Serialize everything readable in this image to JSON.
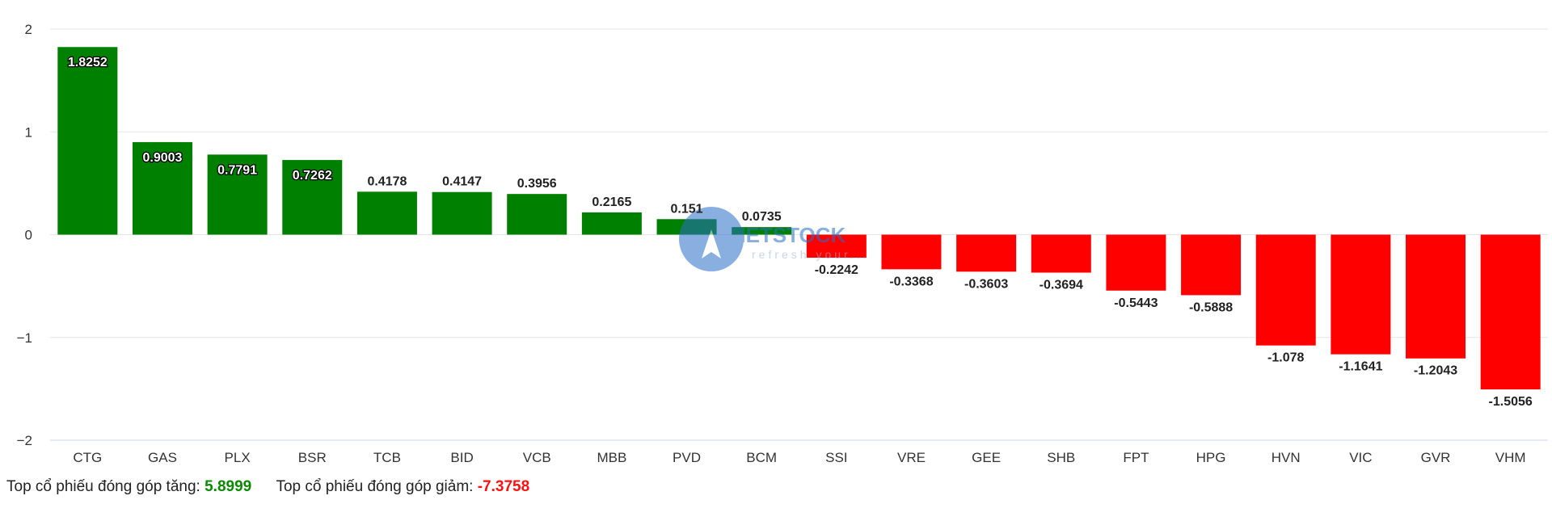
{
  "chart_data": {
    "type": "bar",
    "categories": [
      "CTG",
      "GAS",
      "PLX",
      "BSR",
      "TCB",
      "BID",
      "VCB",
      "MBB",
      "PVD",
      "BCM",
      "SSI",
      "VRE",
      "GEE",
      "SHB",
      "FPT",
      "HPG",
      "HVN",
      "VIC",
      "GVR",
      "VHM"
    ],
    "values": [
      1.8252,
      0.9003,
      0.7791,
      0.7262,
      0.4178,
      0.4147,
      0.3956,
      0.2165,
      0.151,
      0.0735,
      -0.2242,
      -0.3368,
      -0.3603,
      -0.3694,
      -0.5443,
      -0.5888,
      -1.078,
      -1.1641,
      -1.2043,
      -1.5056
    ],
    "value_labels": [
      "1.8252",
      "0.9003",
      "0.7791",
      "0.7262",
      "0.4178",
      "0.4147",
      "0.3956",
      "0.2165",
      "0.151",
      "0.0735",
      "-0.2242",
      "-0.3368",
      "-0.3603",
      "-0.3694",
      "-0.5443",
      "-0.5888",
      "-1.078",
      "-1.1641",
      "-1.2043",
      "-1.5056"
    ],
    "ylim": [
      -2,
      2
    ],
    "y_ticks": [
      2,
      1,
      0,
      -1,
      -2
    ],
    "y_tick_labels": [
      "2",
      "1",
      "0",
      "−1",
      "−2"
    ],
    "grid": true,
    "colors": {
      "positive": "#008000",
      "negative": "#ff0000",
      "grid": "#e6e6e6",
      "axis": "#ccd6eb"
    }
  },
  "watermark": {
    "text": "VIETSTOCK",
    "subtext": "refresh your..."
  },
  "footer": {
    "gain_label": "Top cổ phiếu đóng góp tăng:",
    "gain_value": "5.8999",
    "loss_label": "Top cổ phiếu đóng góp giảm:",
    "loss_value": "-7.3758"
  }
}
